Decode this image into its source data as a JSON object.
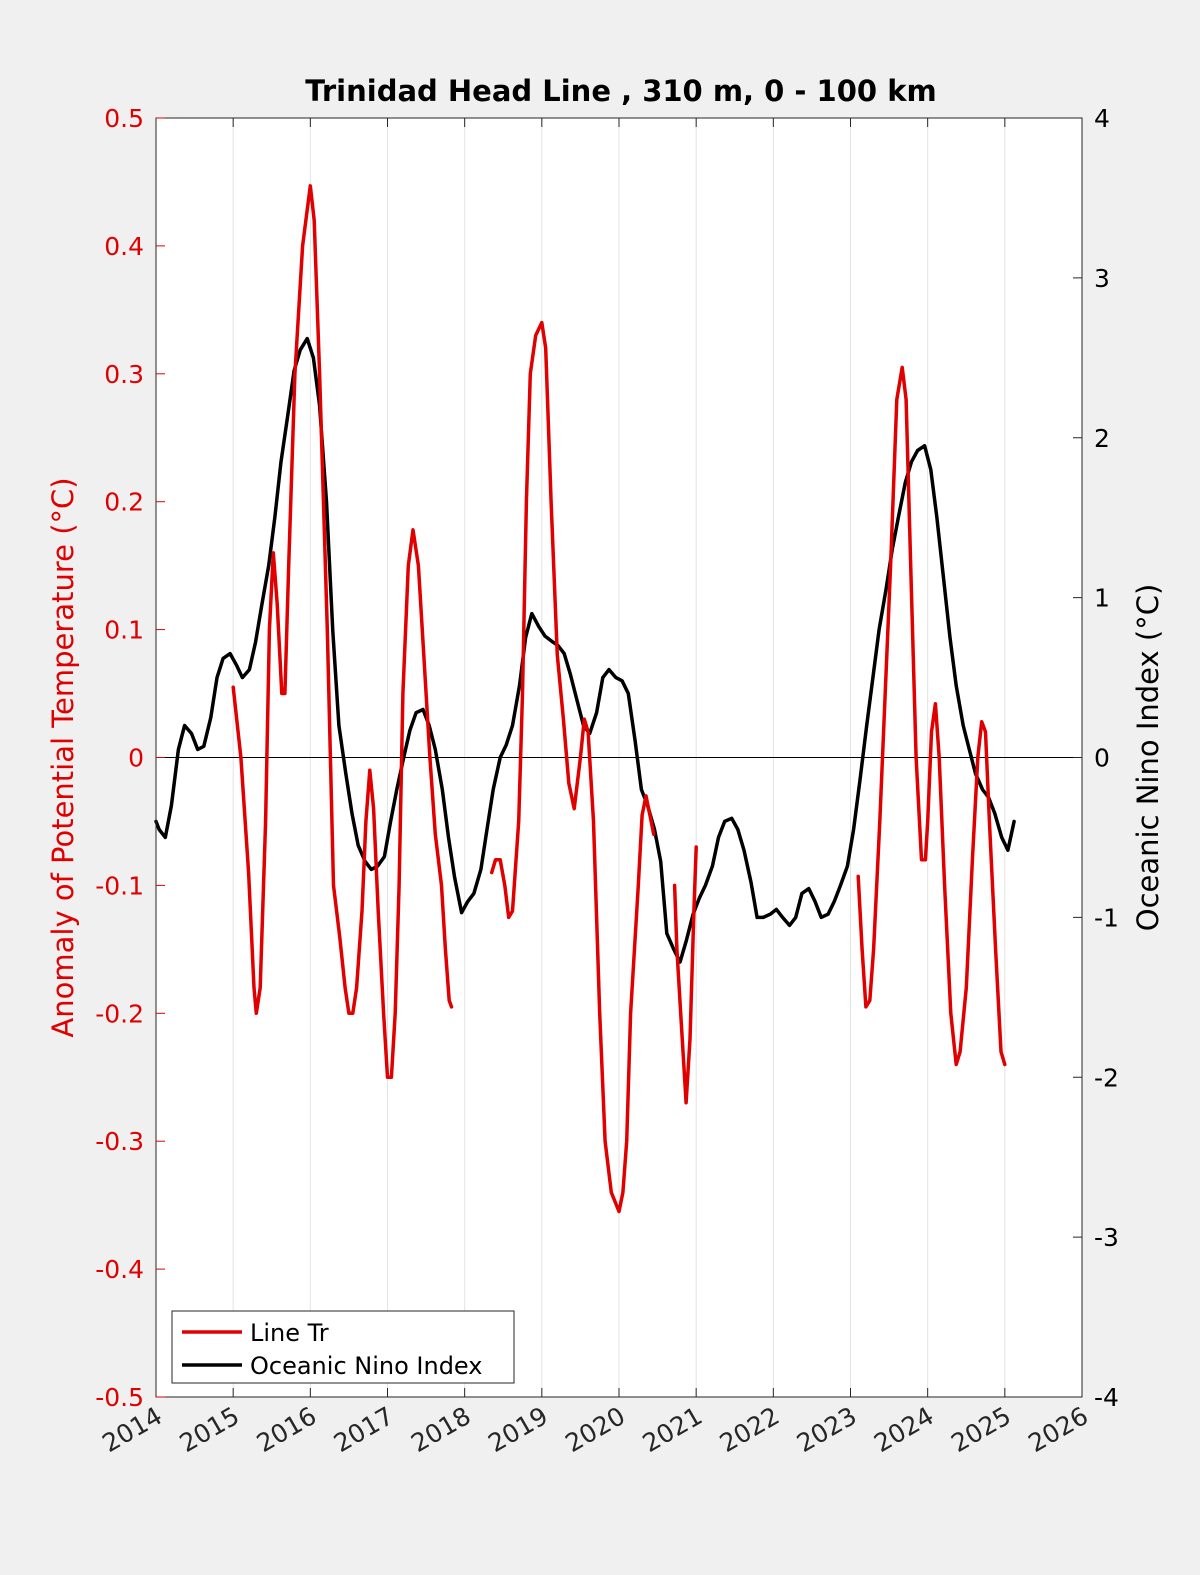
{
  "chart_data": {
    "type": "line",
    "title": "Trinidad Head Line , 310 m, 0 - 100 km",
    "xlabel": "",
    "xlim": [
      2014,
      2026
    ],
    "xticks": [
      "2014",
      "2015",
      "2016",
      "2017",
      "2018",
      "2019",
      "2020",
      "2021",
      "2022",
      "2023",
      "2024",
      "2025",
      "2026"
    ],
    "ylabel_left": "Anomaly of Potential Temperature (°C)",
    "ylim_left": [
      -0.5,
      0.5
    ],
    "yticks_left": [
      "-0.5",
      "-0.4",
      "-0.3",
      "-0.2",
      "-0.1",
      "0",
      "0.1",
      "0.2",
      "0.3",
      "0.4",
      "0.5"
    ],
    "ylabel_right": "Oceanic Nino Index (°C)",
    "ylim_right": [
      -4,
      4
    ],
    "yticks_right": [
      "-4",
      "-3",
      "-2",
      "-1",
      "0",
      "1",
      "2",
      "3",
      "4"
    ],
    "grid": "vertical",
    "legend_position": "bottom-left",
    "colors": {
      "line_tr": "#e00000",
      "oni": "#000000"
    },
    "series": [
      {
        "name": "Line Tr",
        "axis": "left",
        "segments": [
          [
            [
              2015.0,
              0.055
            ],
            [
              2015.1,
              0.0
            ],
            [
              2015.2,
              -0.09
            ],
            [
              2015.27,
              -0.18
            ],
            [
              2015.3,
              -0.2
            ],
            [
              2015.35,
              -0.18
            ],
            [
              2015.42,
              -0.05
            ],
            [
              2015.47,
              0.1
            ],
            [
              2015.52,
              0.16
            ],
            [
              2015.57,
              0.12
            ],
            [
              2015.63,
              0.05
            ],
            [
              2015.67,
              0.05
            ],
            [
              2015.72,
              0.15
            ],
            [
              2015.8,
              0.3
            ],
            [
              2015.9,
              0.4
            ],
            [
              2016.0,
              0.447
            ],
            [
              2016.05,
              0.42
            ],
            [
              2016.12,
              0.3
            ],
            [
              2016.22,
              0.1
            ],
            [
              2016.3,
              -0.1
            ],
            [
              2016.38,
              -0.14
            ],
            [
              2016.45,
              -0.18
            ],
            [
              2016.5,
              -0.2
            ],
            [
              2016.55,
              -0.2
            ],
            [
              2016.6,
              -0.18
            ],
            [
              2016.67,
              -0.12
            ],
            [
              2016.72,
              -0.05
            ],
            [
              2016.77,
              -0.01
            ],
            [
              2016.82,
              -0.04
            ],
            [
              2016.88,
              -0.12
            ],
            [
              2016.95,
              -0.2
            ],
            [
              2017.0,
              -0.25
            ],
            [
              2017.05,
              -0.25
            ],
            [
              2017.1,
              -0.2
            ],
            [
              2017.15,
              -0.1
            ],
            [
              2017.2,
              0.05
            ],
            [
              2017.27,
              0.15
            ],
            [
              2017.33,
              0.178
            ],
            [
              2017.4,
              0.15
            ],
            [
              2017.47,
              0.08
            ],
            [
              2017.55,
              0.0
            ],
            [
              2017.62,
              -0.06
            ],
            [
              2017.7,
              -0.1
            ],
            [
              2017.75,
              -0.15
            ],
            [
              2017.8,
              -0.19
            ],
            [
              2017.83,
              -0.195
            ]
          ],
          [
            [
              2018.35,
              -0.09
            ],
            [
              2018.4,
              -0.08
            ],
            [
              2018.46,
              -0.08
            ],
            [
              2018.52,
              -0.1
            ],
            [
              2018.57,
              -0.125
            ],
            [
              2018.62,
              -0.12
            ],
            [
              2018.7,
              -0.05
            ],
            [
              2018.75,
              0.05
            ],
            [
              2018.8,
              0.2
            ],
            [
              2018.85,
              0.3
            ],
            [
              2018.92,
              0.33
            ],
            [
              2019.0,
              0.34
            ],
            [
              2019.05,
              0.32
            ],
            [
              2019.12,
              0.2
            ],
            [
              2019.2,
              0.08
            ],
            [
              2019.28,
              0.03
            ],
            [
              2019.35,
              -0.02
            ],
            [
              2019.42,
              -0.04
            ],
            [
              2019.5,
              0.0
            ],
            [
              2019.55,
              0.03
            ],
            [
              2019.6,
              0.02
            ],
            [
              2019.67,
              -0.05
            ],
            [
              2019.75,
              -0.2
            ],
            [
              2019.82,
              -0.3
            ],
            [
              2019.9,
              -0.34
            ],
            [
              2020.0,
              -0.355
            ],
            [
              2020.05,
              -0.34
            ],
            [
              2020.1,
              -0.3
            ],
            [
              2020.15,
              -0.2
            ],
            [
              2020.25,
              -0.1
            ],
            [
              2020.3,
              -0.045
            ],
            [
              2020.35,
              -0.03
            ],
            [
              2020.4,
              -0.045
            ],
            [
              2020.45,
              -0.06
            ]
          ],
          [
            [
              2020.72,
              -0.1
            ],
            [
              2020.75,
              -0.15
            ],
            [
              2020.8,
              -0.2
            ],
            [
              2020.87,
              -0.27
            ],
            [
              2020.92,
              -0.22
            ],
            [
              2020.97,
              -0.12
            ],
            [
              2021.0,
              -0.07
            ]
          ],
          [
            [
              2023.1,
              -0.093
            ],
            [
              2023.15,
              -0.15
            ],
            [
              2023.2,
              -0.195
            ],
            [
              2023.25,
              -0.19
            ],
            [
              2023.3,
              -0.15
            ],
            [
              2023.38,
              -0.05
            ],
            [
              2023.45,
              0.05
            ],
            [
              2023.52,
              0.15
            ],
            [
              2023.6,
              0.28
            ],
            [
              2023.67,
              0.305
            ],
            [
              2023.72,
              0.28
            ],
            [
              2023.78,
              0.15
            ],
            [
              2023.85,
              0.0
            ],
            [
              2023.92,
              -0.08
            ],
            [
              2023.97,
              -0.08
            ],
            [
              2024.0,
              -0.05
            ],
            [
              2024.05,
              0.02
            ],
            [
              2024.1,
              0.042
            ],
            [
              2024.15,
              0.0
            ],
            [
              2024.22,
              -0.1
            ],
            [
              2024.3,
              -0.2
            ],
            [
              2024.37,
              -0.24
            ],
            [
              2024.42,
              -0.23
            ],
            [
              2024.5,
              -0.18
            ],
            [
              2024.58,
              -0.08
            ],
            [
              2024.65,
              0.0
            ],
            [
              2024.7,
              0.028
            ],
            [
              2024.75,
              0.02
            ],
            [
              2024.8,
              -0.05
            ],
            [
              2024.88,
              -0.15
            ],
            [
              2024.95,
              -0.23
            ],
            [
              2025.0,
              -0.24
            ]
          ]
        ]
      },
      {
        "name": "Oceanic Nino Index",
        "axis": "right",
        "segments": [
          [
            [
              2014.0,
              -0.4
            ],
            [
              2014.04,
              -0.45
            ],
            [
              2014.12,
              -0.5
            ],
            [
              2014.2,
              -0.3
            ],
            [
              2014.29,
              0.05
            ],
            [
              2014.37,
              0.2
            ],
            [
              2014.46,
              0.15
            ],
            [
              2014.54,
              0.05
            ],
            [
              2014.62,
              0.07
            ],
            [
              2014.71,
              0.25
            ],
            [
              2014.79,
              0.5
            ],
            [
              2014.87,
              0.62
            ],
            [
              2014.96,
              0.65
            ],
            [
              2015.04,
              0.58
            ],
            [
              2015.12,
              0.5
            ],
            [
              2015.21,
              0.55
            ],
            [
              2015.29,
              0.72
            ],
            [
              2015.37,
              0.95
            ],
            [
              2015.46,
              1.2
            ],
            [
              2015.54,
              1.5
            ],
            [
              2015.62,
              1.85
            ],
            [
              2015.71,
              2.15
            ],
            [
              2015.79,
              2.42
            ],
            [
              2015.87,
              2.55
            ],
            [
              2015.96,
              2.62
            ],
            [
              2016.04,
              2.5
            ],
            [
              2016.12,
              2.2
            ],
            [
              2016.21,
              1.6
            ],
            [
              2016.29,
              0.8
            ],
            [
              2016.37,
              0.2
            ],
            [
              2016.46,
              -0.1
            ],
            [
              2016.54,
              -0.35
            ],
            [
              2016.62,
              -0.55
            ],
            [
              2016.71,
              -0.65
            ],
            [
              2016.79,
              -0.7
            ],
            [
              2016.87,
              -0.68
            ],
            [
              2016.96,
              -0.62
            ],
            [
              2017.04,
              -0.4
            ],
            [
              2017.12,
              -0.2
            ],
            [
              2017.21,
              0.0
            ],
            [
              2017.29,
              0.17
            ],
            [
              2017.37,
              0.28
            ],
            [
              2017.46,
              0.3
            ],
            [
              2017.54,
              0.2
            ],
            [
              2017.62,
              0.05
            ],
            [
              2017.71,
              -0.2
            ],
            [
              2017.79,
              -0.5
            ],
            [
              2017.87,
              -0.75
            ],
            [
              2017.96,
              -0.97
            ],
            [
              2018.04,
              -0.9
            ],
            [
              2018.12,
              -0.85
            ],
            [
              2018.21,
              -0.7
            ],
            [
              2018.29,
              -0.45
            ],
            [
              2018.37,
              -0.2
            ],
            [
              2018.46,
              0.0
            ],
            [
              2018.54,
              0.08
            ],
            [
              2018.62,
              0.2
            ],
            [
              2018.71,
              0.45
            ],
            [
              2018.79,
              0.75
            ],
            [
              2018.87,
              0.9
            ],
            [
              2018.96,
              0.82
            ],
            [
              2019.04,
              0.76
            ],
            [
              2019.12,
              0.73
            ],
            [
              2019.21,
              0.7
            ],
            [
              2019.29,
              0.65
            ],
            [
              2019.37,
              0.52
            ],
            [
              2019.46,
              0.35
            ],
            [
              2019.54,
              0.2
            ],
            [
              2019.62,
              0.15
            ],
            [
              2019.71,
              0.28
            ],
            [
              2019.79,
              0.5
            ],
            [
              2019.87,
              0.55
            ],
            [
              2019.96,
              0.5
            ],
            [
              2020.04,
              0.48
            ],
            [
              2020.12,
              0.4
            ],
            [
              2020.21,
              0.1
            ],
            [
              2020.29,
              -0.2
            ],
            [
              2020.37,
              -0.3
            ],
            [
              2020.46,
              -0.45
            ],
            [
              2020.54,
              -0.65
            ],
            [
              2020.62,
              -1.1
            ],
            [
              2020.71,
              -1.2
            ],
            [
              2020.79,
              -1.28
            ],
            [
              2020.87,
              -1.15
            ],
            [
              2020.96,
              -0.98
            ],
            [
              2021.04,
              -0.88
            ],
            [
              2021.12,
              -0.8
            ],
            [
              2021.21,
              -0.68
            ],
            [
              2021.29,
              -0.5
            ],
            [
              2021.37,
              -0.4
            ],
            [
              2021.46,
              -0.38
            ],
            [
              2021.54,
              -0.45
            ],
            [
              2021.62,
              -0.58
            ],
            [
              2021.71,
              -0.78
            ],
            [
              2021.79,
              -1.0
            ],
            [
              2021.87,
              -1.0
            ],
            [
              2021.96,
              -0.98
            ],
            [
              2022.04,
              -0.95
            ],
            [
              2022.12,
              -1.0
            ],
            [
              2022.21,
              -1.05
            ],
            [
              2022.29,
              -1.0
            ],
            [
              2022.37,
              -0.85
            ],
            [
              2022.46,
              -0.82
            ],
            [
              2022.54,
              -0.9
            ],
            [
              2022.62,
              -1.0
            ],
            [
              2022.71,
              -0.98
            ],
            [
              2022.79,
              -0.9
            ],
            [
              2022.87,
              -0.8
            ],
            [
              2022.96,
              -0.68
            ],
            [
              2023.04,
              -0.45
            ],
            [
              2023.12,
              -0.15
            ],
            [
              2023.21,
              0.2
            ],
            [
              2023.29,
              0.5
            ],
            [
              2023.37,
              0.8
            ],
            [
              2023.46,
              1.05
            ],
            [
              2023.54,
              1.3
            ],
            [
              2023.62,
              1.5
            ],
            [
              2023.71,
              1.72
            ],
            [
              2023.79,
              1.85
            ],
            [
              2023.87,
              1.92
            ],
            [
              2023.96,
              1.95
            ],
            [
              2024.04,
              1.8
            ],
            [
              2024.12,
              1.5
            ],
            [
              2024.21,
              1.1
            ],
            [
              2024.29,
              0.75
            ],
            [
              2024.37,
              0.45
            ],
            [
              2024.46,
              0.2
            ],
            [
              2024.54,
              0.05
            ],
            [
              2024.62,
              -0.1
            ],
            [
              2024.71,
              -0.2
            ],
            [
              2024.79,
              -0.25
            ],
            [
              2024.87,
              -0.35
            ],
            [
              2024.96,
              -0.5
            ],
            [
              2025.04,
              -0.58
            ],
            [
              2025.12,
              -0.4
            ]
          ]
        ]
      }
    ]
  }
}
